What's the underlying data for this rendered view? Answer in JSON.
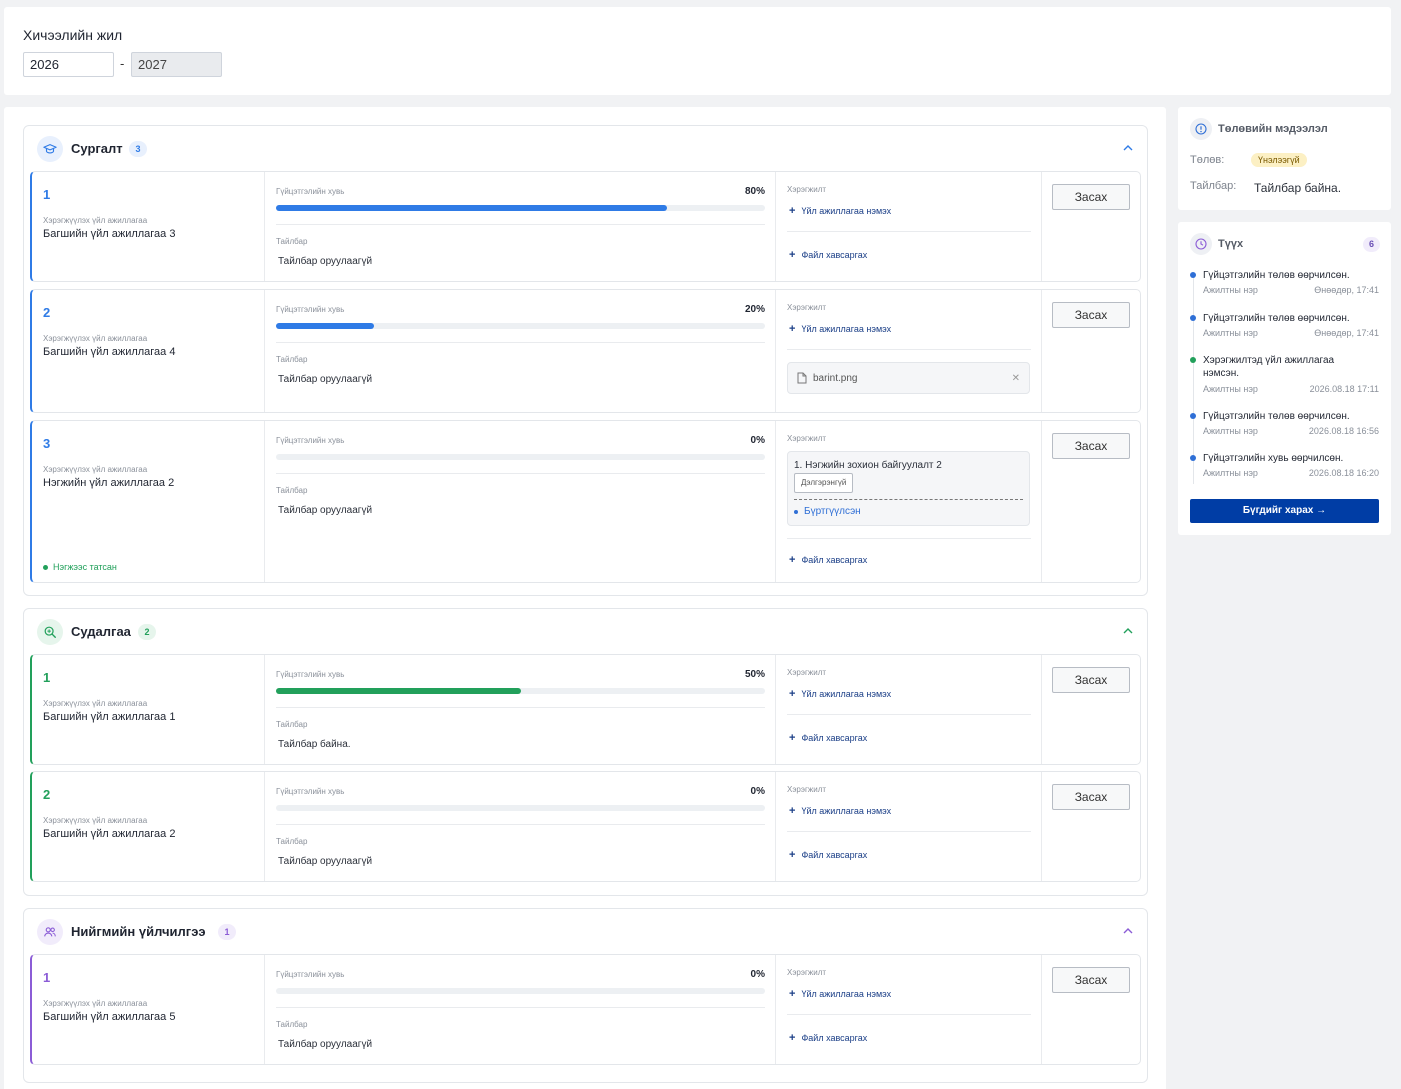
{
  "year": {
    "label": "Хичээлийн жил",
    "from": "2026",
    "to": "2027",
    "separator": "-"
  },
  "labels": {
    "activity": "Хэрэгжүүлэх үйл ажиллагаа",
    "progress": "Гүйцэтгэлийн хувь",
    "description": "Тайлбар",
    "implementation": "Хэрэгжилт",
    "add_activity": "Үйл ажиллагаа нэмэх",
    "attach_file": "Файл хавсаргах",
    "edit": "Засах"
  },
  "colors": {
    "teaching": "#2f7be6",
    "research": "#22a05b",
    "social": "#8b5cd6",
    "primary_button": "#003da5"
  },
  "categories": [
    {
      "title": "Сургалт",
      "count": "3",
      "icon": "graduation-cap-icon",
      "rows": [
        {
          "num": "1",
          "name": "Багшийн үйл ажиллагаа 3",
          "percent": "80%",
          "progress": 0.8,
          "desc": "Тайлбар оруулаагүй",
          "file": null
        },
        {
          "num": "2",
          "name": "Багшийн үйл ажиллагаа 4",
          "percent": "20%",
          "progress": 0.2,
          "desc": "Тайлбар оруулаагүй",
          "file": "barint.png"
        },
        {
          "num": "3",
          "name": "Нэгжийн үйл ажиллагаа 2",
          "percent": "0%",
          "progress": 0,
          "desc": "Тайлбар оруулаагүй",
          "tag": "Нэгжээс татсан",
          "implementation": {
            "item": "1.   Нэгжийн зохион байгуулалт 2",
            "detail_button": "Дэлгэрэнгүй",
            "status": "Бүртгүүлсэн"
          }
        }
      ]
    },
    {
      "title": "Судалгаа",
      "count": "2",
      "icon": "search-icon",
      "rows": [
        {
          "num": "1",
          "name": "Багшийн үйл ажиллагаа 1",
          "percent": "50%",
          "progress": 0.5,
          "desc": "Тайлбар байна."
        },
        {
          "num": "2",
          "name": "Багшийн үйл ажиллагаа 2",
          "percent": "0%",
          "progress": 0,
          "desc": "Тайлбар оруулаагүй"
        }
      ]
    },
    {
      "title": "Нийгмийн үйлчилгээ",
      "count": "1",
      "icon": "people-icon",
      "rows": [
        {
          "num": "1",
          "name": "Багшийн үйл ажиллагаа 5",
          "percent": "0%",
          "progress": 0,
          "desc": "Тайлбар оруулаагүй"
        }
      ]
    }
  ],
  "status_card": {
    "title": "Төлөвийн мэдээлэл",
    "status_key": "Төлөв:",
    "status_value": "Үнэлээгүй",
    "desc_key": "Тайлбар:",
    "desc_value": "Тайлбар байна."
  },
  "history": {
    "title": "Түүх",
    "count": "6",
    "see_all": "Бүгдийг харах →",
    "items": [
      {
        "text": "Гүйцэтгэлийн төлөв өөрчилсөн.",
        "who": "Ажилтны нэр",
        "when": "Өнөөдөр, 17:41",
        "color": "#2f6fd6"
      },
      {
        "text": "Гүйцэтгэлийн төлөв өөрчилсөн.",
        "who": "Ажилтны нэр",
        "when": "Өнөөдөр, 17:41",
        "color": "#2f6fd6"
      },
      {
        "text": "Хэрэгжилтэд үйл ажиллагаа нэмсэн.",
        "who": "Ажилтны нэр",
        "when": "2026.08.18 17:11",
        "color": "#22a05b"
      },
      {
        "text": "Гүйцэтгэлийн төлөв өөрчилсөн.",
        "who": "Ажилтны нэр",
        "when": "2026.08.18 16:56",
        "color": "#2f6fd6"
      },
      {
        "text": "Гүйцэтгэлийн хувь өөрчилсөн.",
        "who": "Ажилтны нэр",
        "when": "2026.08.18 16:20",
        "color": "#2f6fd6"
      }
    ]
  }
}
